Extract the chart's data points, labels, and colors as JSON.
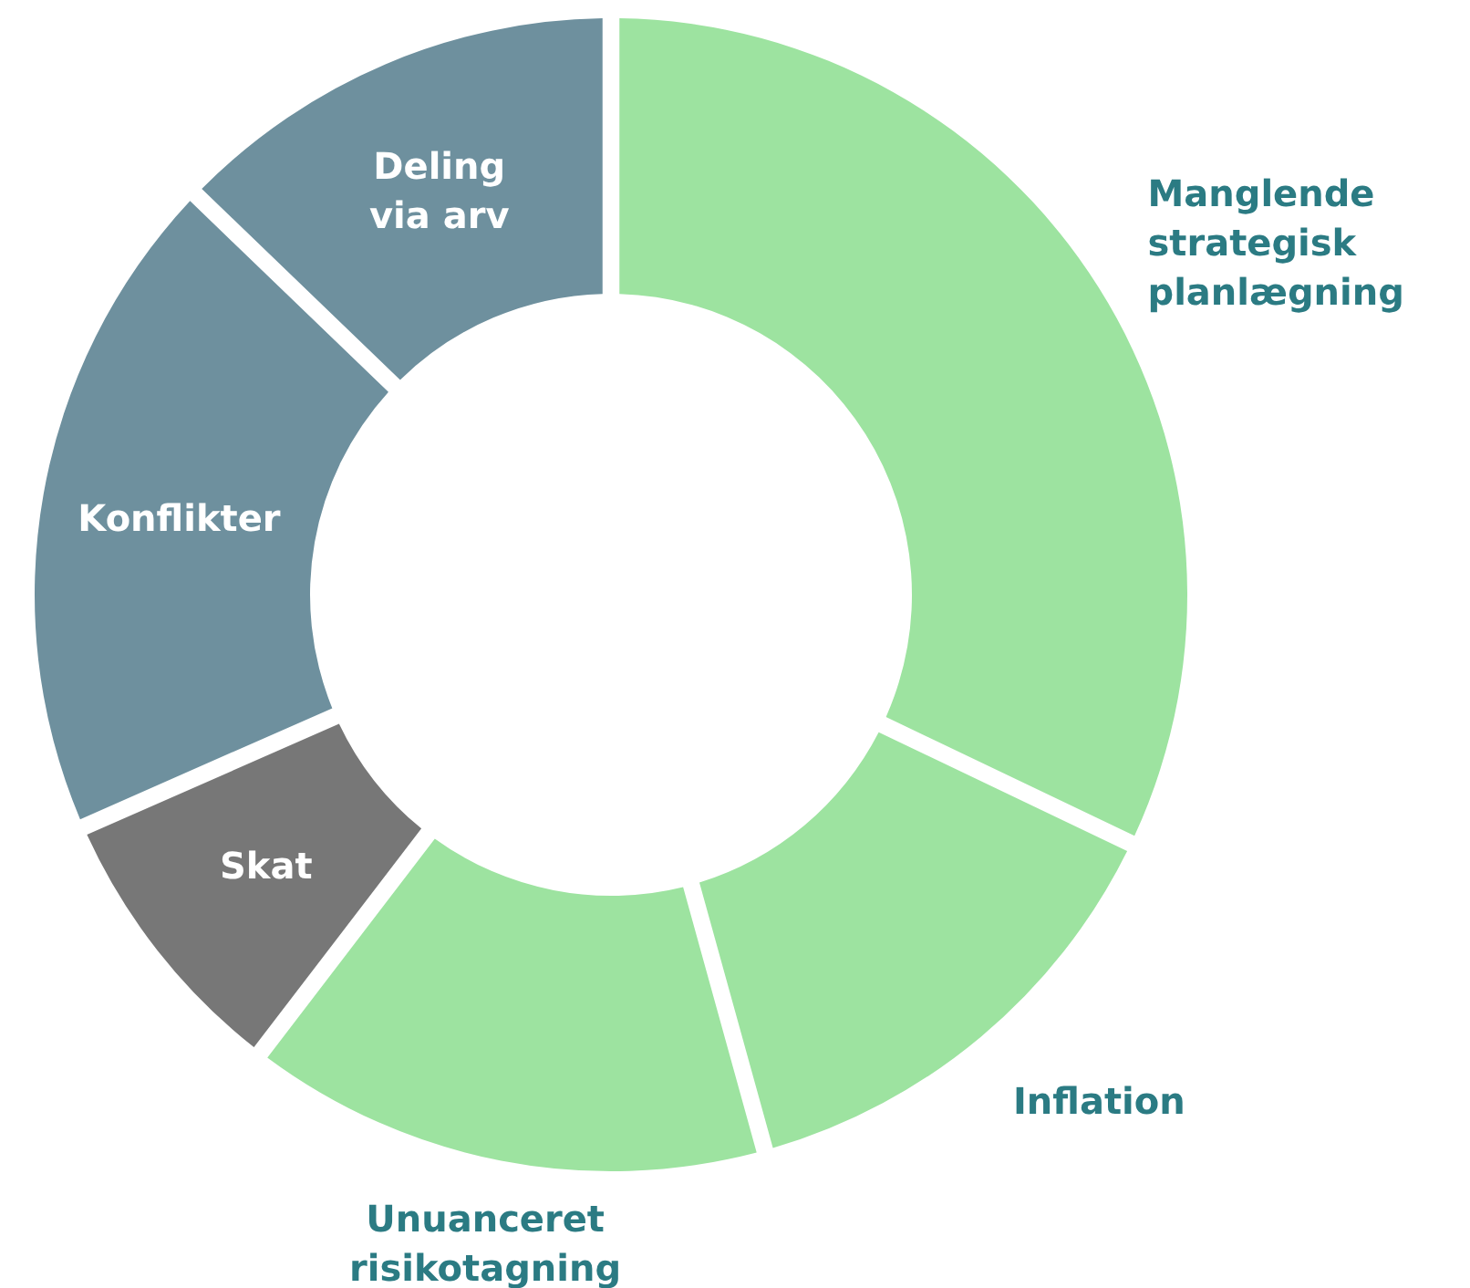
{
  "chart_data": {
    "type": "donut",
    "categories": [
      "Manglende\nstrategisk\nplanlægning",
      "Inflation",
      "Unuanceret\nrisikotagning",
      "Skat",
      "Konflikter",
      "Deling\nvia arv"
    ],
    "values": [
      32.1,
      13.6,
      14.7,
      8.0,
      18.8,
      12.8
    ],
    "colors": [
      "#9de3a0",
      "#9de3a0",
      "#9de3a0",
      "#777777",
      "#6e909e",
      "#6e909e"
    ]
  }
}
